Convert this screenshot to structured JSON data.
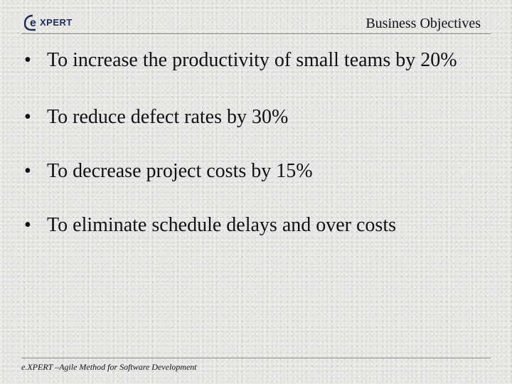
{
  "header": {
    "logo_text": "eXPERT",
    "title": "Business Objectives"
  },
  "bullets": [
    "To increase the productivity of small teams by 20%",
    "To reduce defect rates by 30%",
    "To decrease project costs by 15%",
    "To eliminate schedule delays and over costs"
  ],
  "footer": {
    "text": "e.XPERT –Agile Method for Software Development"
  },
  "colors": {
    "logo_dark": "#1e2a57",
    "background": "#e6e5e3"
  },
  "icons": {
    "logo": "expert-logo-icon"
  }
}
